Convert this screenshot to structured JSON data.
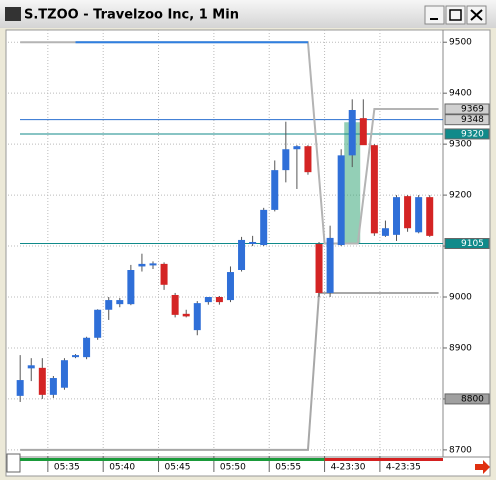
{
  "window_title": "S.TZOO - Travelzoo Inc, 1 Min",
  "chart_data": {
    "type": "candlestick",
    "open": [
      8806,
      8860,
      8861,
      8808,
      8822,
      8882,
      8882,
      8920,
      8975,
      8986,
      8986,
      9060,
      9062,
      9065,
      9004,
      8967,
      8935,
      8990,
      9000,
      8994,
      9053,
      9104,
      9102,
      9171,
      9249,
      9290,
      9296,
      9104,
      9008,
      9102,
      9278,
      9351,
      9298,
      9120,
      9122,
      9198,
      9127,
      9196
    ],
    "high": [
      8886,
      8880,
      8880,
      8845,
      8880,
      8888,
      8922,
      8976,
      9000,
      8998,
      9063,
      9085,
      9070,
      9068,
      9008,
      8975,
      8992,
      9000,
      9002,
      9060,
      9118,
      9120,
      9175,
      9268,
      9344,
      9298,
      9298,
      9108,
      9140,
      9290,
      9388,
      9388,
      9300,
      9150,
      9200,
      9200,
      9200,
      9200
    ],
    "low": [
      8794,
      8835,
      8800,
      8802,
      8818,
      8880,
      8878,
      8916,
      8955,
      8980,
      8984,
      9050,
      9055,
      9014,
      8960,
      8960,
      8925,
      8985,
      8985,
      8990,
      9050,
      9100,
      9100,
      9168,
      9225,
      9212,
      9240,
      9000,
      9000,
      9100,
      9255,
      9300,
      9120,
      9118,
      9110,
      9128,
      9125,
      9118
    ],
    "close": [
      8837,
      8866,
      8808,
      8841,
      8876,
      8886,
      8920,
      8975,
      8994,
      8994,
      9053,
      9065,
      9066,
      9024,
      8965,
      8962,
      8988,
      9000,
      8990,
      9049,
      9112,
      9108,
      9171,
      9249,
      9290,
      9296,
      9245,
      9008,
      9116,
      9278,
      9367,
      9298,
      9125,
      9135,
      9196,
      9135,
      9196,
      9120
    ],
    "up_color": "#2f6fd8",
    "down_color": "#d42424",
    "lines": [
      {
        "color": "#b4b4b4",
        "x": [
          0,
          26,
          27.5,
          30.5,
          32,
          37.8
        ],
        "values": [
          9500,
          9500,
          9105,
          9105,
          9369,
          9369
        ]
      },
      {
        "color": "#2f7fe0",
        "x": [
          5,
          26
        ],
        "values": [
          9500,
          9500
        ]
      },
      {
        "color": "#a8a8a8",
        "x": [
          0,
          26,
          27,
          37.8
        ],
        "values": [
          8700,
          8700,
          9008,
          9008
        ]
      }
    ],
    "hlines": [
      {
        "value": 9348,
        "color": "#2a6fd0"
      },
      {
        "value": 9320,
        "color": "#108a8a"
      },
      {
        "value": 9105,
        "color": "#108a8a"
      }
    ],
    "markers": [
      {
        "value": 9369,
        "color": "#d0d0d0"
      },
      {
        "value": 9348,
        "color": "#d0d0d0"
      },
      {
        "value": 9320,
        "color": "#108a8a"
      },
      {
        "value": 9105,
        "color": "#108a8a"
      },
      {
        "value": 8800,
        "color": "#a0a0a0"
      }
    ],
    "highlight": {
      "x": 30,
      "range": [
        9106,
        9343
      ],
      "color": "#3aa87a"
    },
    "ylim": [
      8688,
      9524
    ],
    "yticks": [
      8700,
      8800,
      8900,
      9000,
      9100,
      9200,
      9300,
      9400,
      9500
    ],
    "xlim": [
      -1.1,
      38.2
    ],
    "xticks": [
      {
        "value": 2.5,
        "label": "05:35"
      },
      {
        "value": 7.5,
        "label": "05:40"
      },
      {
        "value": 12.5,
        "label": "05:45"
      },
      {
        "value": 17.5,
        "label": "05:50"
      },
      {
        "value": 22.5,
        "label": "05:55"
      },
      {
        "value": 27.5,
        "label": "4-23:30"
      },
      {
        "value": 32.5,
        "label": "4-23:35"
      }
    ],
    "grid": true
  }
}
